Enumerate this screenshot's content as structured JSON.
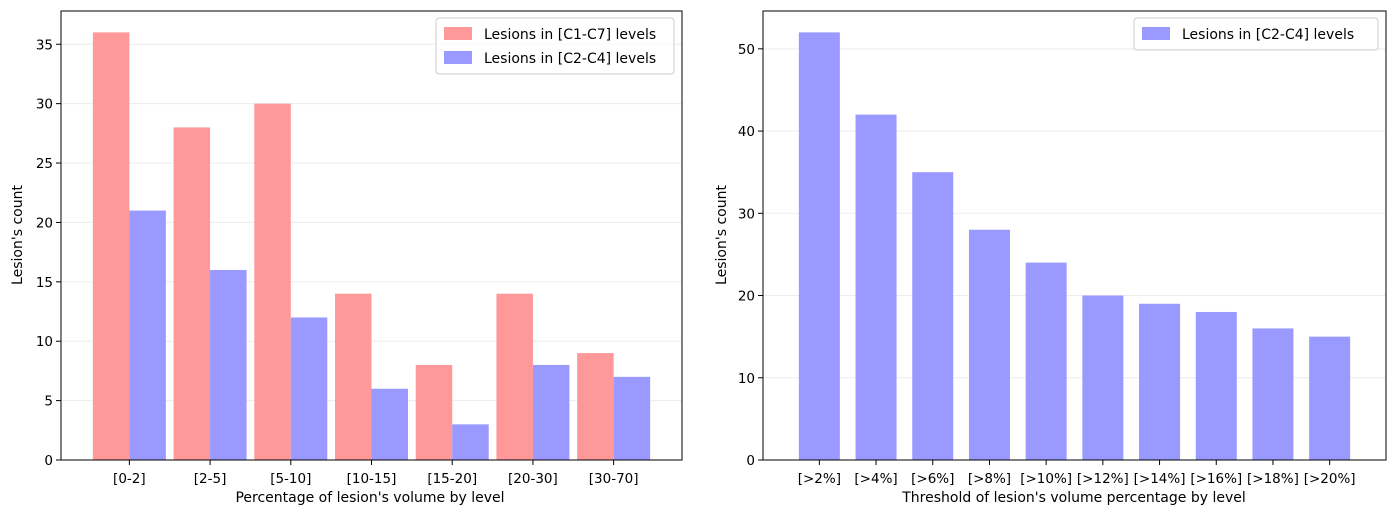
{
  "chart_data": [
    {
      "type": "bar",
      "xlabel": "Percentage of lesion's volume by level",
      "ylabel": "Lesion's count",
      "categories": [
        "[0-2]",
        "[2-5]",
        "[5-10]",
        "[10-15]",
        "[15-20]",
        "[20-30]",
        "[30-70]"
      ],
      "series": [
        {
          "name": "Lesions in [C1-C7] levels",
          "color": "#ff9999",
          "values": [
            36,
            28,
            30,
            14,
            8,
            14,
            9
          ]
        },
        {
          "name": "Lesions in [C2-C4] levels",
          "color": "#9999ff",
          "values": [
            21,
            16,
            12,
            6,
            3,
            8,
            7
          ]
        }
      ],
      "ylim": [
        0,
        37.8
      ],
      "yticks": [
        0,
        5,
        10,
        15,
        20,
        25,
        30,
        35
      ],
      "grid": "horizontal, faint",
      "legend": "top-right"
    },
    {
      "type": "bar",
      "xlabel": "Threshold of lesion's volume percentage by level",
      "ylabel": "Lesion's count",
      "categories": [
        "[>2%]",
        "[>4%]",
        "[>6%]",
        "[>8%]",
        "[>10%]",
        "[>12%]",
        "[>14%]",
        "[>16%]",
        "[>18%]",
        "[>20%]"
      ],
      "series": [
        {
          "name": "Lesions in [C2-C4] levels",
          "color": "#9999ff",
          "values": [
            52,
            42,
            35,
            28,
            24,
            20,
            19,
            18,
            16,
            15
          ]
        }
      ],
      "ylim": [
        0,
        54.6
      ],
      "yticks": [
        0,
        10,
        20,
        30,
        40,
        50
      ],
      "grid": "horizontal, faint",
      "legend": "top-right"
    }
  ]
}
